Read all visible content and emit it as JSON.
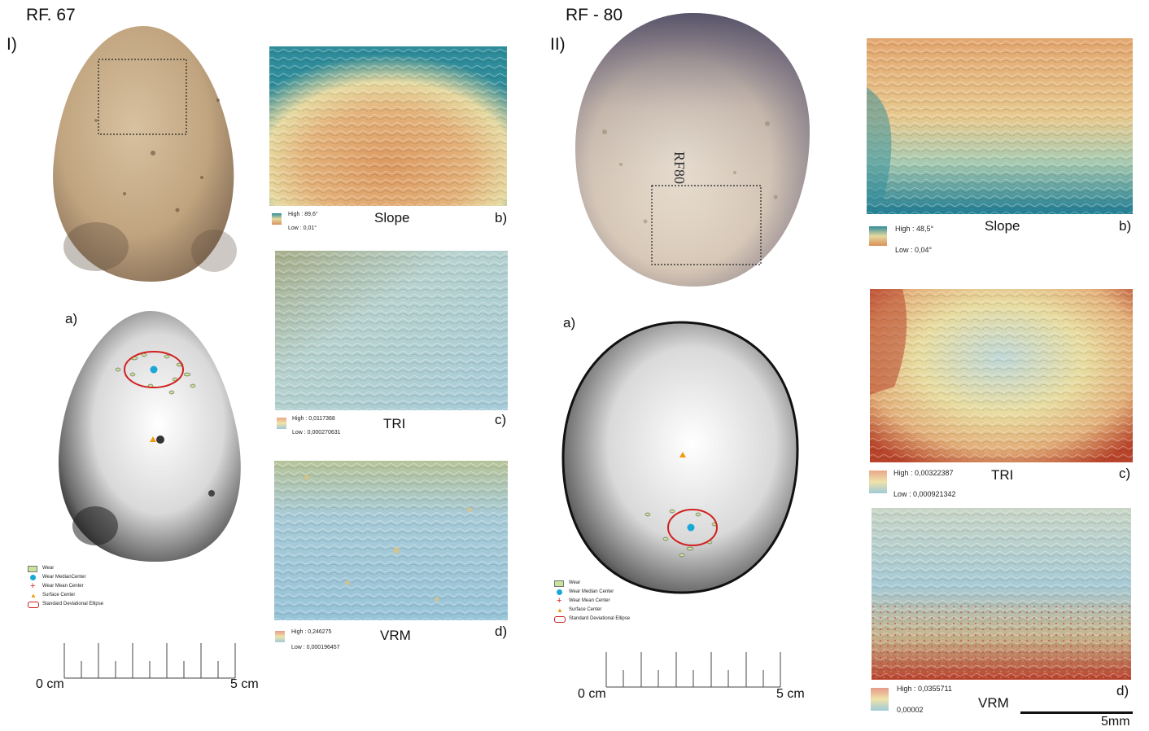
{
  "left": {
    "title": "RF. 67",
    "roman": "I)",
    "model_label": "a)",
    "legend": [
      "Wear",
      "Wear MedianCenter",
      "Wear Mean Center",
      "Surface Center",
      "Standard Deviational Ellipse"
    ],
    "scale": {
      "start": "0 cm",
      "end": "5 cm"
    },
    "maps": [
      {
        "name": "Slope",
        "letter": "b)",
        "high": "High : 89,6°",
        "low": "Low : 0,01°"
      },
      {
        "name": "TRI",
        "letter": "c)",
        "high": "High : 0,0117368",
        "low": "Low : 0,000270631"
      },
      {
        "name": "VRM",
        "letter": "d)",
        "high": "High : 0,246275",
        "low": "Low : 0,000196457"
      }
    ]
  },
  "right": {
    "title": "RF - 80",
    "roman": "II)",
    "model_label": "a)",
    "legend": [
      "Wear",
      "Wear Median Center",
      "Wear Mean Center",
      "Surface Center",
      "Standard Deviational Ellipse"
    ],
    "scale": {
      "start": "0 cm",
      "end": "5 cm"
    },
    "maps": [
      {
        "name": "Slope",
        "letter": "b)",
        "high": "High : 48,5°",
        "low": "Low : 0,04°"
      },
      {
        "name": "TRI",
        "letter": "c)",
        "high": "High : 0,00322387",
        "low": "Low : 0,000921342"
      },
      {
        "name": "VRM",
        "letter": "d)",
        "high": "High : 0,0355711",
        "low": "0,00002"
      }
    ]
  },
  "scalebar_label": "5mm",
  "colors": {
    "slope_high": "#2f8c9a",
    "slope_low": "#d9915a",
    "tri_high": "#e8a78a",
    "tri_low": "#9fc9d8",
    "vrm_high": "#e79a8a",
    "vrm_low": "#9fc9d8",
    "ellipse": "#d11f1f",
    "median_center": "#19a7d6",
    "mean_center": "#d11f1f",
    "surface_center": "#f09a12",
    "wear": "#c9e39a"
  }
}
